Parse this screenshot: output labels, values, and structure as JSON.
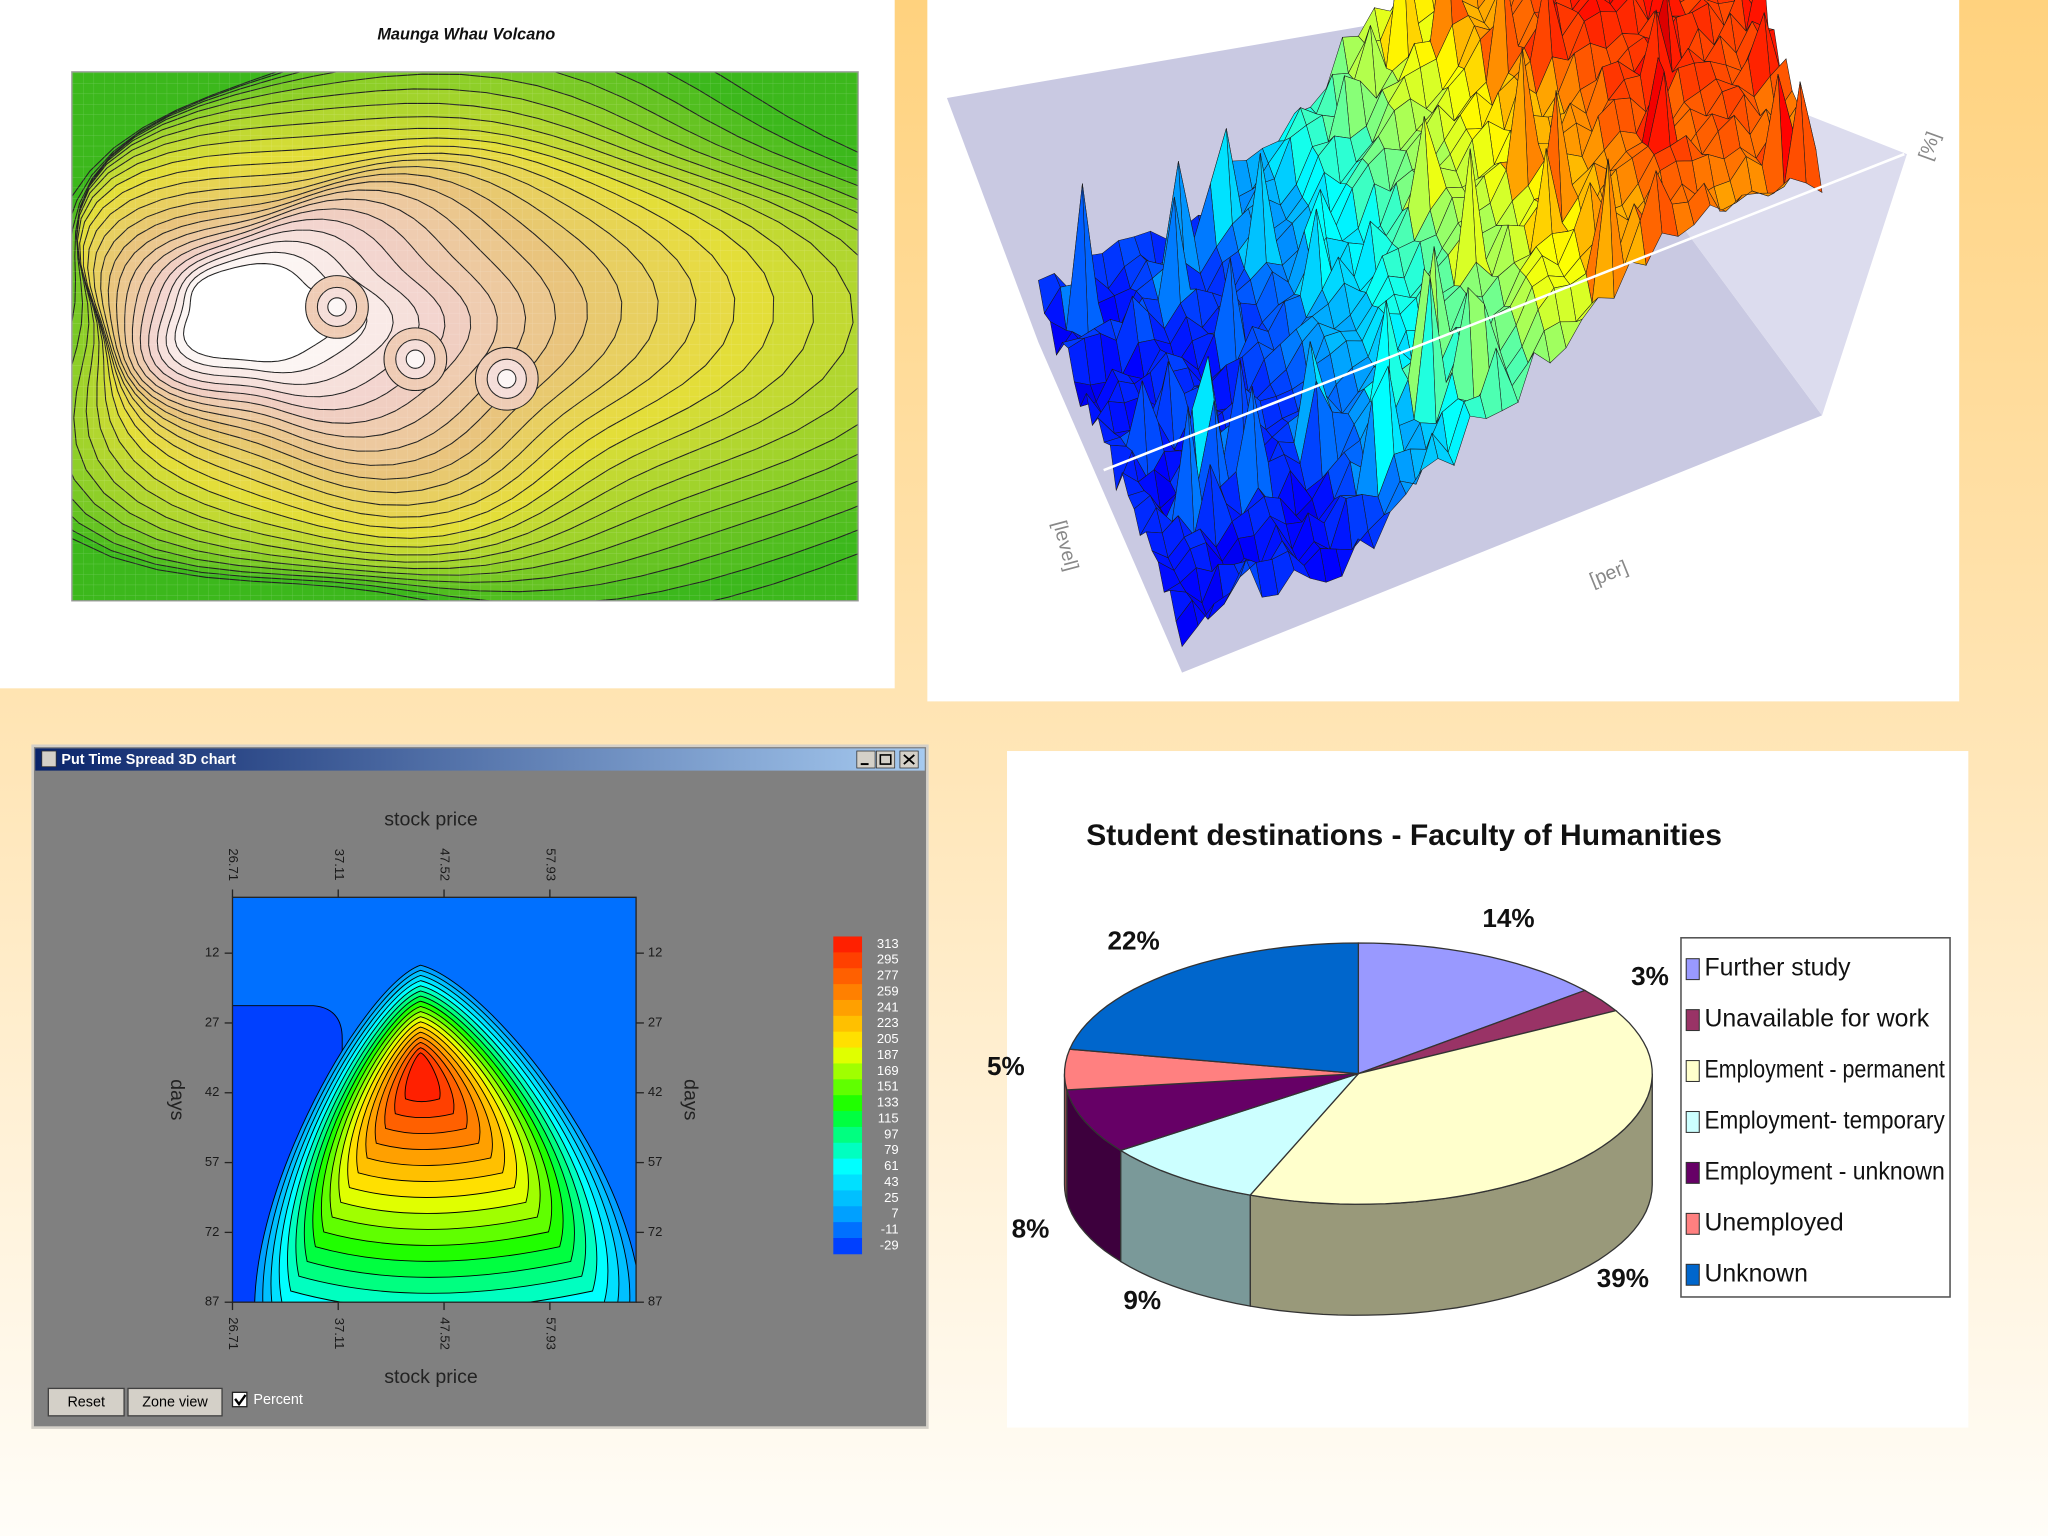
{
  "chart_data": [
    {
      "type": "contour",
      "title": "Maunga Whau Volcano"
    },
    {
      "type": "surface",
      "xlabel": "[per]",
      "ylabel": "[level]",
      "zlabel": "[%]"
    },
    {
      "type": "filled_contour",
      "window_title": "Put Time Spread 3D chart",
      "xlabel": "stock price",
      "ylabel": "days",
      "xlim": [
        26.71,
        66.41
      ],
      "ylim": [
        0,
        87
      ],
      "xticks": [
        26.71,
        37.11,
        47.52,
        57.93
      ],
      "yticks": [
        12,
        27,
        42,
        57,
        72,
        87
      ],
      "colorbar": {
        "ticks": [
          313,
          295,
          277,
          259,
          241,
          223,
          205,
          187,
          169,
          151,
          133,
          115,
          97,
          79,
          61,
          43,
          25,
          7,
          -11,
          -29
        ],
        "colors": [
          "#ff2000",
          "#ff4000",
          "#ff6000",
          "#ff8000",
          "#ffa000",
          "#ffc000",
          "#ffe000",
          "#e0ff00",
          "#a0ff00",
          "#60ff00",
          "#20ff00",
          "#00ff40",
          "#00ff80",
          "#00ffc0",
          "#00ffff",
          "#00e0ff",
          "#00c0ff",
          "#00a0ff",
          "#0070ff",
          "#0040ff"
        ]
      },
      "buttons": [
        "Reset",
        "Zone view"
      ],
      "checkbox": "Percent"
    },
    {
      "type": "pie",
      "title": "Student destinations - Faculty of Humanities",
      "categories": [
        "Further study",
        "Unavailable for work",
        "Employment - permanent",
        "Employment- temporary",
        "Employment - unknown",
        "Unemployed",
        "Unknown"
      ],
      "values": [
        14,
        3,
        39,
        9,
        8,
        5,
        22
      ],
      "value_labels": [
        "14%",
        "3%",
        "39%",
        "9%",
        "8%",
        "5%",
        "22%"
      ],
      "colors": [
        "#9999ff",
        "#993366",
        "#ffffcc",
        "#ccffff",
        "#660066",
        "#ff8080",
        "#0066cc"
      ],
      "legend": "right"
    }
  ]
}
